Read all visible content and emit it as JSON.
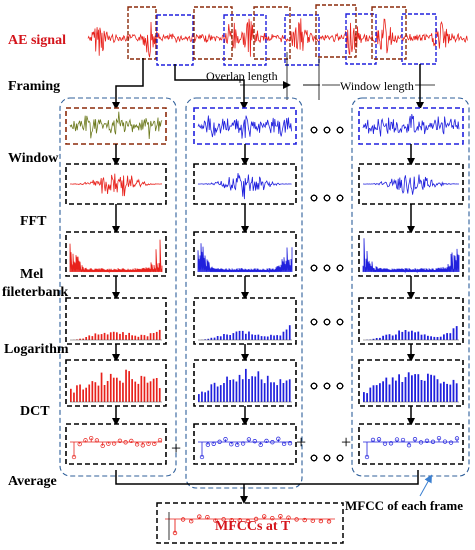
{
  "labels": {
    "ae_signal": "AE signal",
    "framing": "Framing",
    "window": "Window",
    "fft": "FFT",
    "mel_line1": "Mel",
    "mel_line2": "fileterbank",
    "logarithm": "Logarithm",
    "dct": "DCT",
    "average": "Average"
  },
  "annotations": {
    "overlap_length": "Overlap length",
    "window_length": "Window length",
    "mfcc_each_frame": "MFCC of each frame",
    "mfccs_at_t": "MFCCs at T"
  },
  "operators": {
    "plus": "+"
  },
  "colors": {
    "frame1": "#e8211b",
    "frame2": "#2020dd",
    "frame3": "#2020dd",
    "frame1_box": "#8b2a0a",
    "frame_box_blue": "#2020dd",
    "column_border": "#2f5f9a",
    "result": "#e8211b"
  }
}
